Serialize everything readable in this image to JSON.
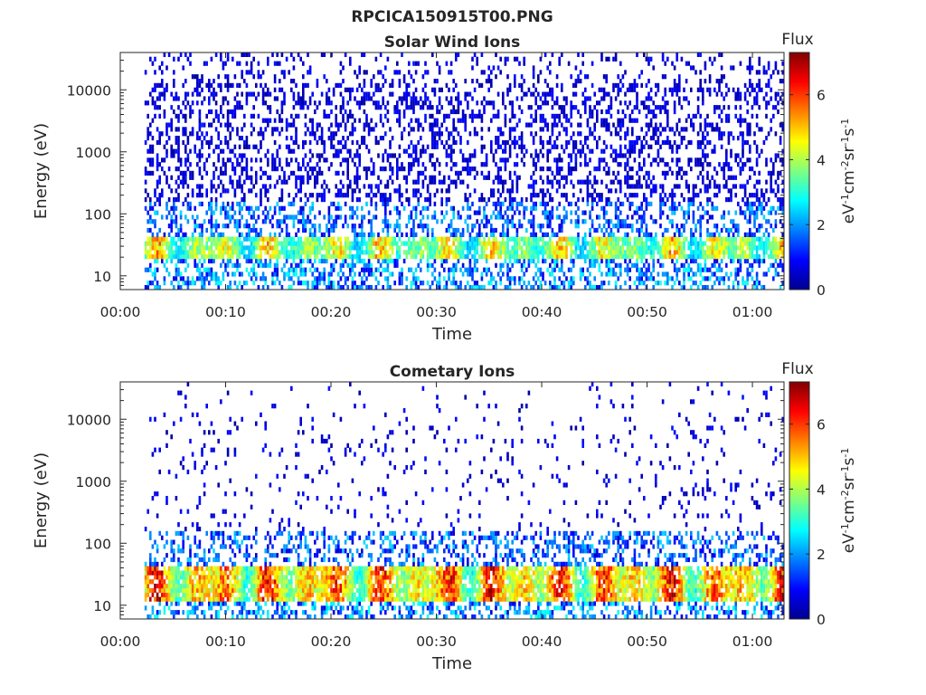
{
  "figure_title": "RPCICA150915T00.PNG",
  "colors": {
    "colormap": "jet",
    "axis": "#262626",
    "background": "#ffffff"
  },
  "chart_data": [
    {
      "type": "heatmap",
      "title": "Solar Wind Ions",
      "xlabel": "Time",
      "ylabel": "Energy (eV)",
      "yscale": "log",
      "ylim": [
        6,
        40000
      ],
      "yticks": [
        10,
        100,
        1000,
        10000
      ],
      "ytick_labels": [
        "10",
        "100",
        "1000",
        "10000"
      ],
      "xlim_minutes": [
        0,
        63
      ],
      "xtick_labels": [
        "00:00",
        "00:10",
        "00:20",
        "00:30",
        "00:40",
        "00:50",
        "01:00"
      ],
      "data_start_minutes": 2.3,
      "colorbar": {
        "label": "Flux",
        "units": "eV-1cm-2sr-1s-1",
        "ticks": [
          0,
          2,
          4,
          6
        ],
        "range": [
          0,
          7.3
        ]
      },
      "low_energy_band_eV": [
        18,
        40
      ],
      "band_peak_flux": 5.5,
      "background_flux": 1.0,
      "high_energy_density": 0.33
    },
    {
      "type": "heatmap",
      "title": "Cometary Ions",
      "xlabel": "Time",
      "ylabel": "Energy (eV)",
      "yscale": "log",
      "ylim": [
        6,
        40000
      ],
      "yticks": [
        10,
        100,
        1000,
        10000
      ],
      "ytick_labels": [
        "10",
        "100",
        "1000",
        "10000"
      ],
      "xlim_minutes": [
        0,
        63
      ],
      "xtick_labels": [
        "00:00",
        "00:10",
        "00:20",
        "00:30",
        "00:40",
        "00:50",
        "01:00"
      ],
      "data_start_minutes": 2.3,
      "colorbar": {
        "label": "Flux",
        "units": "eV-1cm-2sr-1s-1",
        "ticks": [
          0,
          2,
          4,
          6
        ],
        "range": [
          0,
          7.3
        ]
      },
      "low_energy_band_eV": [
        12,
        45
      ],
      "band_peak_flux": 7.0,
      "background_flux": 1.0,
      "high_energy_density": 0.06
    }
  ]
}
